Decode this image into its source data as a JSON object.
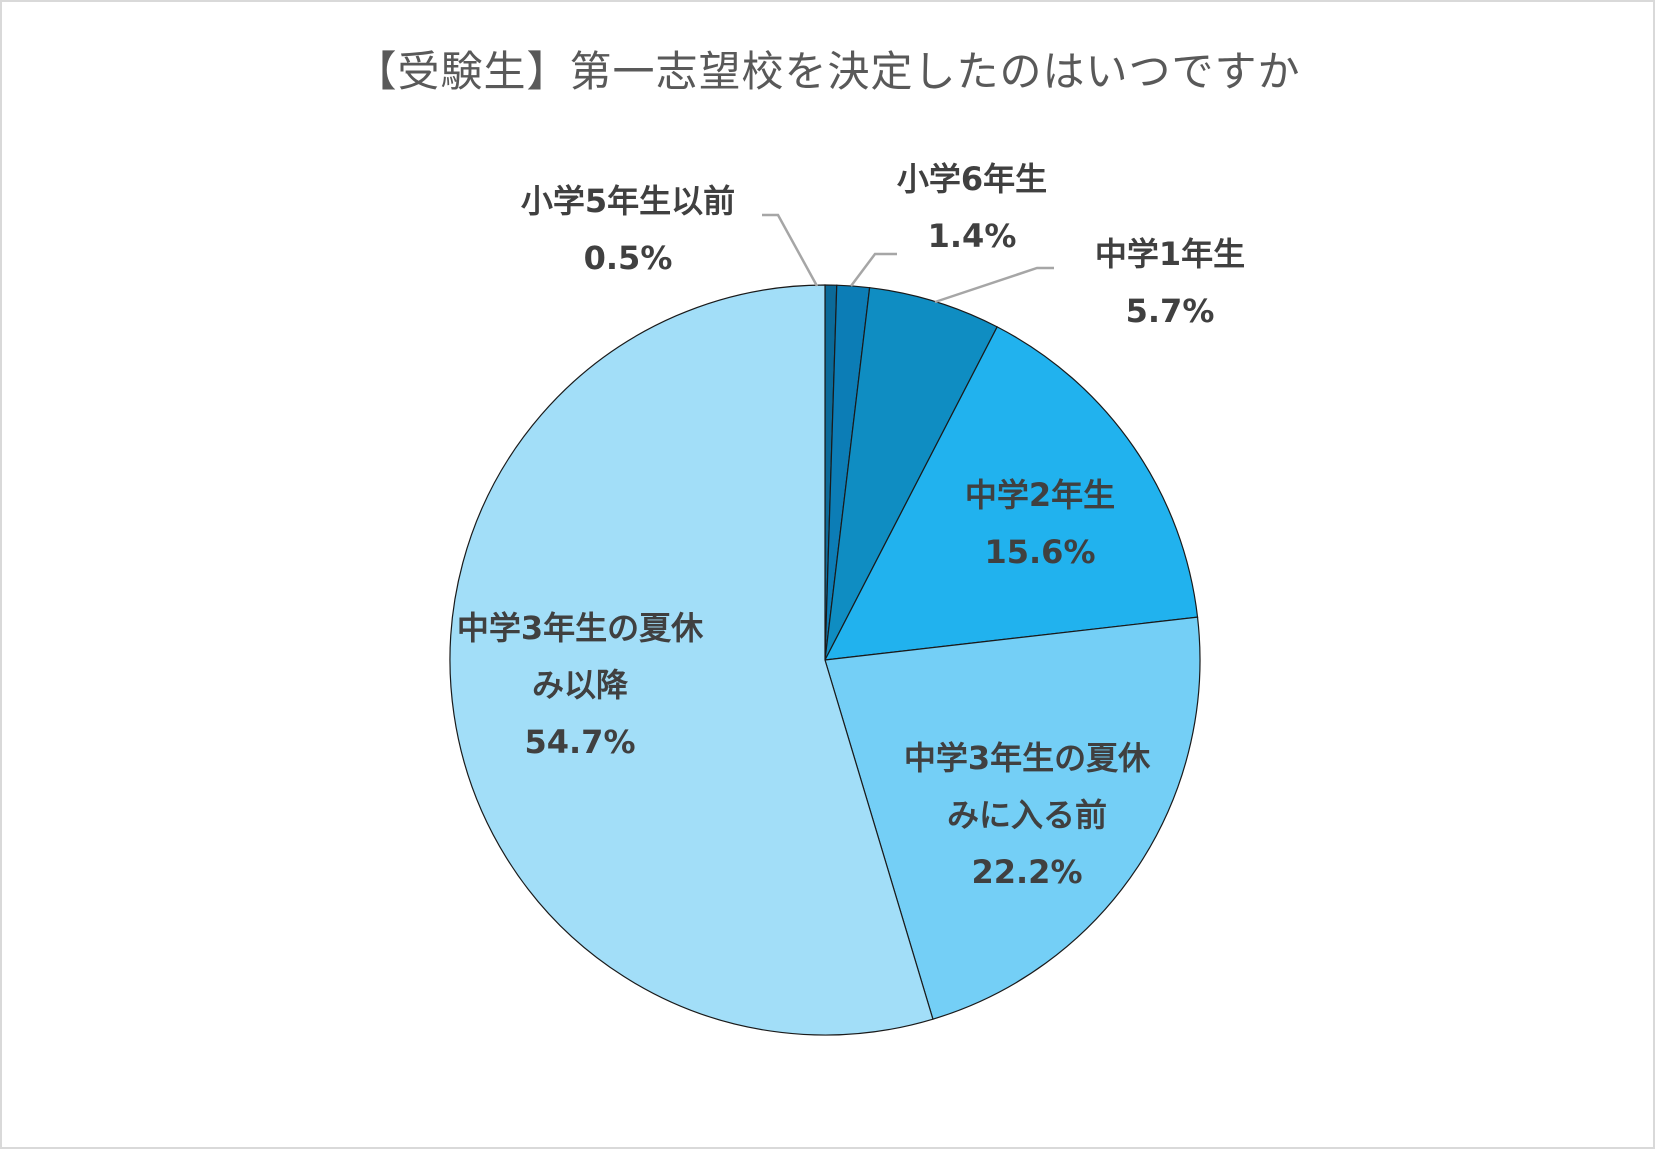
{
  "chart_data": {
    "type": "pie",
    "title": "【受験生】第一志望校を決定したのはいつですか",
    "slices": [
      {
        "label": [
          "小学5年生以前"
        ],
        "value": 0.5,
        "value_label": "0.5%",
        "color": "#0b6a99"
      },
      {
        "label": [
          "小学6年生"
        ],
        "value": 1.4,
        "value_label": "1.4%",
        "color": "#0c7db6"
      },
      {
        "label": [
          "中学1年生"
        ],
        "value": 5.7,
        "value_label": "5.7%",
        "color": "#0f8dc2"
      },
      {
        "label": [
          "中学2年生"
        ],
        "value": 15.6,
        "value_label": "15.6%",
        "color": "#21b2ee"
      },
      {
        "label": [
          "中学3年生の夏休",
          "みに入る前"
        ],
        "value": 22.2,
        "value_label": "22.2%",
        "color": "#74cff6"
      },
      {
        "label": [
          "中学3年生の夏休",
          "み以降"
        ],
        "value": 54.7,
        "value_label": "54.7%",
        "color": "#a2def8"
      }
    ],
    "start_angle": "12 o'clock",
    "direction": "clockwise",
    "slice_border_color": "#1a1a1a",
    "leader_line_color": "#a6a6a6",
    "label_color": "#404040",
    "legend": "none"
  }
}
